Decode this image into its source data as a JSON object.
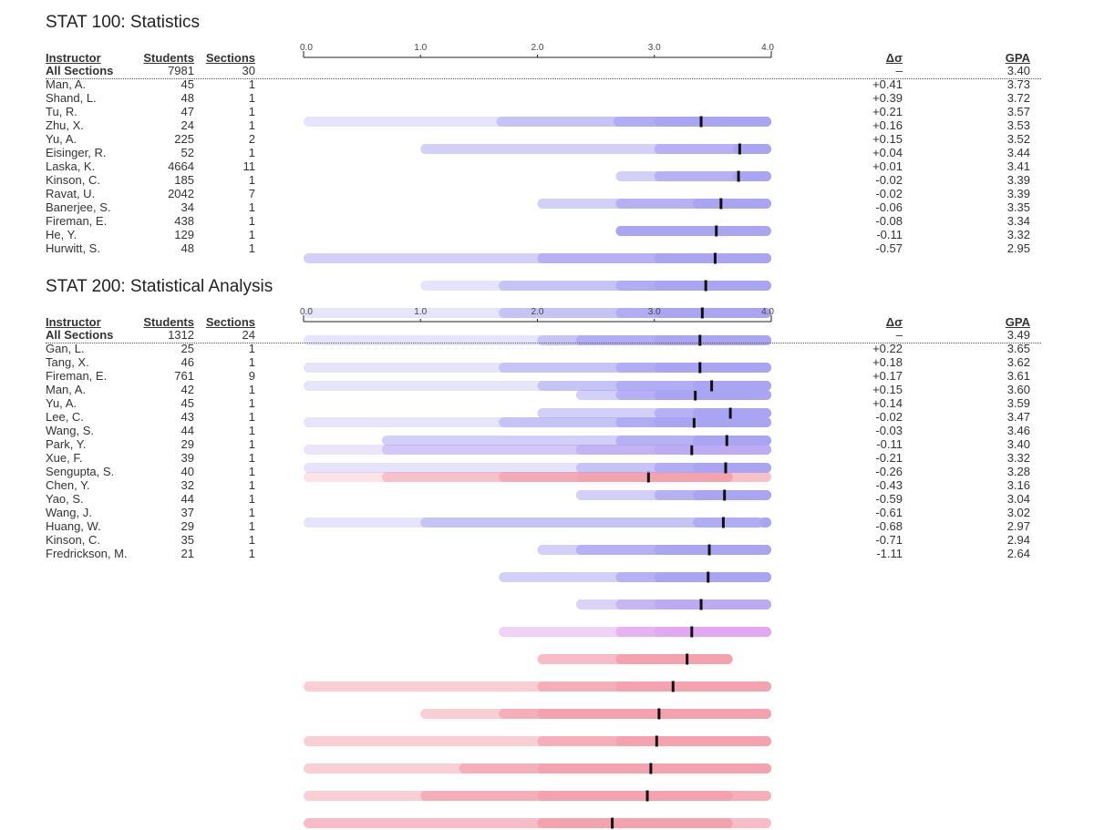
{
  "columns": {
    "instructor": "Instructor",
    "students": "Students",
    "sections": "Sections",
    "delta": "Δσ",
    "gpa": "GPA"
  },
  "axis_ticks": [
    "0.0",
    "1.0",
    "2.0",
    "3.0",
    "4.0"
  ],
  "colors": {
    "above": "#a9a5f2",
    "slightly_above": "#bcaaf2",
    "below_slight": "#e3a6f0",
    "below": "#f4a2ae"
  },
  "chart_data": [
    {
      "type": "bar",
      "title": "STAT 100: Statistics",
      "xlim": [
        0,
        4
      ],
      "note": "Each row: nested grade-distribution bands (min, p10, p25, median-region, max) with a marker at the mean GPA.",
      "rows": [
        {
          "instructor": "All Sections",
          "students": "7981",
          "sections": "30",
          "delta": "–",
          "gpa": "3.40",
          "color": "#a9a5f2",
          "bands": [
            [
              0.0,
              4.0
            ],
            [
              1.65,
              4.0
            ],
            [
              2.65,
              4.0
            ],
            [
              3.0,
              4.0
            ]
          ],
          "mean": 3.4
        },
        {
          "instructor": "Man, A.",
          "students": "45",
          "sections": "1",
          "delta": "+0.41",
          "gpa": "3.73",
          "color": "#a9a5f2",
          "bands": [
            [
              1.0,
              4.0
            ],
            [
              3.0,
              4.0
            ],
            [
              3.67,
              4.0
            ]
          ],
          "mean": 3.73
        },
        {
          "instructor": "Shand, L.",
          "students": "48",
          "sections": "1",
          "delta": "+0.39",
          "gpa": "3.72",
          "color": "#a9a5f2",
          "bands": [
            [
              2.67,
              4.0
            ],
            [
              3.0,
              4.0
            ],
            [
              3.67,
              4.0
            ]
          ],
          "mean": 3.72
        },
        {
          "instructor": "Tu, R.",
          "students": "47",
          "sections": "1",
          "delta": "+0.21",
          "gpa": "3.57",
          "color": "#a9a5f2",
          "bands": [
            [
              2.0,
              4.0
            ],
            [
              2.67,
              4.0
            ],
            [
              3.33,
              4.0
            ]
          ],
          "mean": 3.57
        },
        {
          "instructor": "Zhu, X.",
          "students": "24",
          "sections": "1",
          "delta": "+0.16",
          "gpa": "3.53",
          "color": "#a9a5f2",
          "bands": [
            [
              2.67,
              4.0
            ]
          ],
          "mean": 3.53
        },
        {
          "instructor": "Yu, A.",
          "students": "225",
          "sections": "2",
          "delta": "+0.15",
          "gpa": "3.52",
          "color": "#a9a5f2",
          "bands": [
            [
              0.0,
              4.0
            ],
            [
              2.0,
              4.0
            ],
            [
              3.0,
              4.0
            ]
          ],
          "mean": 3.52
        },
        {
          "instructor": "Eisinger, R.",
          "students": "52",
          "sections": "1",
          "delta": "+0.04",
          "gpa": "3.44",
          "color": "#a9a5f2",
          "bands": [
            [
              1.0,
              4.0
            ],
            [
              1.67,
              4.0
            ],
            [
              2.67,
              4.0
            ],
            [
              3.0,
              4.0
            ]
          ],
          "mean": 3.44
        },
        {
          "instructor": "Laska, K.",
          "students": "4664",
          "sections": "11",
          "delta": "+0.01",
          "gpa": "3.41",
          "color": "#a9a5f2",
          "bands": [
            [
              0.0,
              4.0
            ],
            [
              1.67,
              4.0
            ],
            [
              2.67,
              4.0
            ],
            [
              3.0,
              4.0
            ]
          ],
          "mean": 3.41
        },
        {
          "instructor": "Kinson, C.",
          "students": "185",
          "sections": "1",
          "delta": "-0.02",
          "gpa": "3.39",
          "color": "#a9a5f2",
          "bands": [
            [
              0.0,
              4.0
            ],
            [
              2.0,
              4.0
            ],
            [
              2.33,
              4.0
            ],
            [
              3.0,
              4.0
            ]
          ],
          "mean": 3.39
        },
        {
          "instructor": "Ravat, U.",
          "students": "2042",
          "sections": "7",
          "delta": "-0.02",
          "gpa": "3.39",
          "color": "#a9a5f2",
          "bands": [
            [
              0.0,
              4.0
            ],
            [
              1.67,
              4.0
            ],
            [
              2.67,
              4.0
            ],
            [
              3.0,
              4.0
            ]
          ],
          "mean": 3.39
        },
        {
          "instructor": "Banerjee, S.",
          "students": "34",
          "sections": "1",
          "delta": "-0.06",
          "gpa": "3.35",
          "color": "#a9a5f2",
          "bands": [
            [
              2.33,
              4.0
            ],
            [
              2.67,
              4.0
            ],
            [
              3.0,
              4.0
            ]
          ],
          "mean": 3.35
        },
        {
          "instructor": "Fireman, E.",
          "students": "438",
          "sections": "1",
          "delta": "-0.08",
          "gpa": "3.34",
          "color": "#a9a5f2",
          "bands": [
            [
              0.0,
              4.0
            ],
            [
              1.67,
              4.0
            ],
            [
              2.67,
              4.0
            ],
            [
              3.0,
              4.0
            ]
          ],
          "mean": 3.34
        },
        {
          "instructor": "He, Y.",
          "students": "129",
          "sections": "1",
          "delta": "-0.11",
          "gpa": "3.32",
          "color": "#bcaaf2",
          "bands": [
            [
              0.0,
              4.0
            ],
            [
              0.67,
              4.0
            ],
            [
              2.33,
              4.0
            ],
            [
              3.0,
              4.0
            ]
          ],
          "mean": 3.32
        },
        {
          "instructor": "Hurwitt, S.",
          "students": "48",
          "sections": "1",
          "delta": "-0.57",
          "gpa": "2.95",
          "color": "#f4a2ae",
          "bands": [
            [
              0.0,
              4.0
            ],
            [
              0.67,
              4.0
            ],
            [
              1.67,
              3.67
            ],
            [
              2.33,
              3.67
            ]
          ],
          "mean": 2.95
        }
      ]
    },
    {
      "type": "bar",
      "title": "STAT 200: Statistical Analysis",
      "xlim": [
        0,
        4
      ],
      "rows": [
        {
          "instructor": "All Sections",
          "students": "1312",
          "sections": "24",
          "delta": "–",
          "gpa": "3.49",
          "color": "#a9a5f2",
          "bands": [
            [
              0.0,
              4.0
            ],
            [
              2.0,
              4.0
            ],
            [
              2.67,
              4.0
            ],
            [
              3.33,
              4.0
            ]
          ],
          "mean": 3.49
        },
        {
          "instructor": "Gan, L.",
          "students": "25",
          "sections": "1",
          "delta": "+0.22",
          "gpa": "3.65",
          "color": "#a9a5f2",
          "bands": [
            [
              2.0,
              4.0
            ],
            [
              3.0,
              4.0
            ],
            [
              3.33,
              4.0
            ]
          ],
          "mean": 3.65
        },
        {
          "instructor": "Tang, X.",
          "students": "46",
          "sections": "1",
          "delta": "+0.18",
          "gpa": "3.62",
          "color": "#a9a5f2",
          "bands": [
            [
              0.67,
              4.0
            ],
            [
              2.67,
              4.0
            ],
            [
              3.33,
              4.0
            ]
          ],
          "mean": 3.62
        },
        {
          "instructor": "Fireman, E.",
          "students": "761",
          "sections": "9",
          "delta": "+0.17",
          "gpa": "3.61",
          "color": "#a9a5f2",
          "bands": [
            [
              0.0,
              4.0
            ],
            [
              2.33,
              4.0
            ],
            [
              3.0,
              4.0
            ],
            [
              3.33,
              4.0
            ]
          ],
          "mean": 3.61
        },
        {
          "instructor": "Man, A.",
          "students": "42",
          "sections": "1",
          "delta": "+0.15",
          "gpa": "3.60",
          "color": "#a9a5f2",
          "bands": [
            [
              2.33,
              4.0
            ],
            [
              3.0,
              4.0
            ],
            [
              3.33,
              4.0
            ]
          ],
          "mean": 3.6
        },
        {
          "instructor": "Yu, A.",
          "students": "45",
          "sections": "1",
          "delta": "+0.14",
          "gpa": "3.59",
          "color": "#a9a5f2",
          "bands": [
            [
              0.0,
              4.0
            ],
            [
              1.0,
              4.0
            ],
            [
              3.33,
              3.92
            ],
            [
              3.9,
              4.0
            ]
          ],
          "mean": 3.59
        },
        {
          "instructor": "Lee, C.",
          "students": "43",
          "sections": "1",
          "delta": "-0.02",
          "gpa": "3.47",
          "color": "#a9a5f2",
          "bands": [
            [
              2.0,
              4.0
            ],
            [
              2.33,
              4.0
            ],
            [
              3.0,
              4.0
            ]
          ],
          "mean": 3.47
        },
        {
          "instructor": "Wang, S.",
          "students": "44",
          "sections": "1",
          "delta": "-0.03",
          "gpa": "3.46",
          "color": "#a9a5f2",
          "bands": [
            [
              1.67,
              4.0
            ],
            [
              2.67,
              4.0
            ],
            [
              3.0,
              4.0
            ]
          ],
          "mean": 3.46
        },
        {
          "instructor": "Park, Y.",
          "students": "29",
          "sections": "1",
          "delta": "-0.11",
          "gpa": "3.40",
          "color": "#bcaaf2",
          "bands": [
            [
              2.33,
              4.0
            ],
            [
              2.67,
              4.0
            ],
            [
              3.0,
              4.0
            ]
          ],
          "mean": 3.4
        },
        {
          "instructor": "Xue, F.",
          "students": "39",
          "sections": "1",
          "delta": "-0.21",
          "gpa": "3.32",
          "color": "#e3a6f0",
          "bands": [
            [
              1.67,
              4.0
            ],
            [
              2.67,
              4.0
            ],
            [
              3.0,
              4.0
            ]
          ],
          "mean": 3.32
        },
        {
          "instructor": "Sengupta, S.",
          "students": "40",
          "sections": "1",
          "delta": "-0.26",
          "gpa": "3.28",
          "color": "#f4a2ae",
          "bands": [
            [
              2.0,
              3.67
            ],
            [
              2.67,
              3.67
            ]
          ],
          "mean": 3.28
        },
        {
          "instructor": "Chen, Y.",
          "students": "32",
          "sections": "1",
          "delta": "-0.43",
          "gpa": "3.16",
          "color": "#f4a2ae",
          "bands": [
            [
              0.0,
              4.0
            ],
            [
              2.0,
              4.0
            ],
            [
              2.67,
              4.0
            ]
          ],
          "mean": 3.16
        },
        {
          "instructor": "Yao, S.",
          "students": "44",
          "sections": "1",
          "delta": "-0.59",
          "gpa": "3.04",
          "color": "#f4a2ae",
          "bands": [
            [
              1.0,
              4.0
            ],
            [
              1.67,
              4.0
            ],
            [
              2.0,
              4.0
            ]
          ],
          "mean": 3.04
        },
        {
          "instructor": "Wang, J.",
          "students": "37",
          "sections": "1",
          "delta": "-0.61",
          "gpa": "3.02",
          "color": "#f4a2ae",
          "bands": [
            [
              0.0,
              4.0
            ],
            [
              2.0,
              4.0
            ],
            [
              2.67,
              4.0
            ]
          ],
          "mean": 3.02
        },
        {
          "instructor": "Huang, W.",
          "students": "29",
          "sections": "1",
          "delta": "-0.68",
          "gpa": "2.97",
          "color": "#f4a2ae",
          "bands": [
            [
              0.0,
              4.0
            ],
            [
              1.33,
              4.0
            ],
            [
              2.0,
              4.0
            ]
          ],
          "mean": 2.97
        },
        {
          "instructor": "Kinson, C.",
          "students": "35",
          "sections": "1",
          "delta": "-0.71",
          "gpa": "2.94",
          "color": "#f4a2ae",
          "bands": [
            [
              0.0,
              4.0
            ],
            [
              1.0,
              4.0
            ],
            [
              2.0,
              3.67
            ]
          ],
          "mean": 2.94
        },
        {
          "instructor": "Fredrickson, M.",
          "students": "21",
          "sections": "1",
          "delta": "-1.11",
          "gpa": "2.64",
          "color": "#f4a2ae",
          "bands": [
            [
              0.0,
              4.0
            ],
            [
              2.0,
              3.67
            ]
          ],
          "mean": 2.64
        }
      ]
    }
  ]
}
